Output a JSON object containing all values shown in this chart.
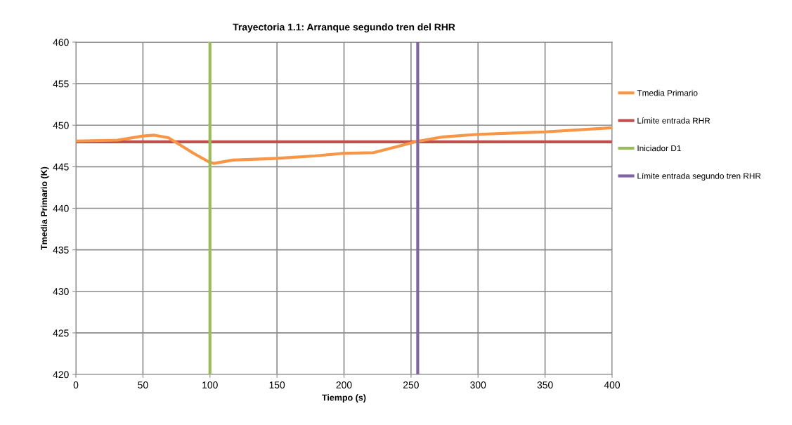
{
  "chart_data": {
    "type": "line",
    "title": "Trayectoria 1.1: Arranque segundo tren del RHR",
    "xlabel": "Tiempo (s)",
    "ylabel": "Tmedia Primario (K)",
    "series": [
      {
        "name": "Tmedia Primario",
        "color": "#f79646",
        "x": [
          0,
          31,
          50,
          58.6,
          69,
          74,
          88,
          99,
          103,
          117,
          148,
          178,
          198,
          222,
          239,
          253,
          274,
          300,
          350,
          400
        ],
        "values": [
          448.1,
          448.2,
          448.7,
          448.8,
          448.5,
          448.0,
          446.6,
          445.6,
          445.4,
          445.8,
          446.0,
          446.3,
          446.6,
          446.7,
          447.4,
          448.0,
          448.6,
          448.9,
          449.2,
          449.7
        ]
      },
      {
        "name": "Iniciador D1",
        "color": "#9bbb59",
        "x": [
          100,
          100
        ],
        "values": [
          420,
          460
        ]
      },
      {
        "name": "Límite entrada segundo tren RHR",
        "color": "#8064a2",
        "x": [
          255,
          255
        ],
        "values": [
          420,
          460
        ]
      }
    ],
    "ref_lines": [
      {
        "axis": "y",
        "value": 448,
        "label": "Límite entrada RHR",
        "color": "#c0504d"
      }
    ],
    "xlim": [
      0,
      400
    ],
    "xticks": [
      0,
      50,
      100,
      150,
      200,
      250,
      300,
      350,
      400
    ],
    "ylim": [
      420,
      460
    ],
    "yticks": [
      420,
      425,
      430,
      435,
      440,
      445,
      450,
      455,
      460
    ],
    "grid": true,
    "legend": "right",
    "marker": "none",
    "line_style": "solid"
  }
}
